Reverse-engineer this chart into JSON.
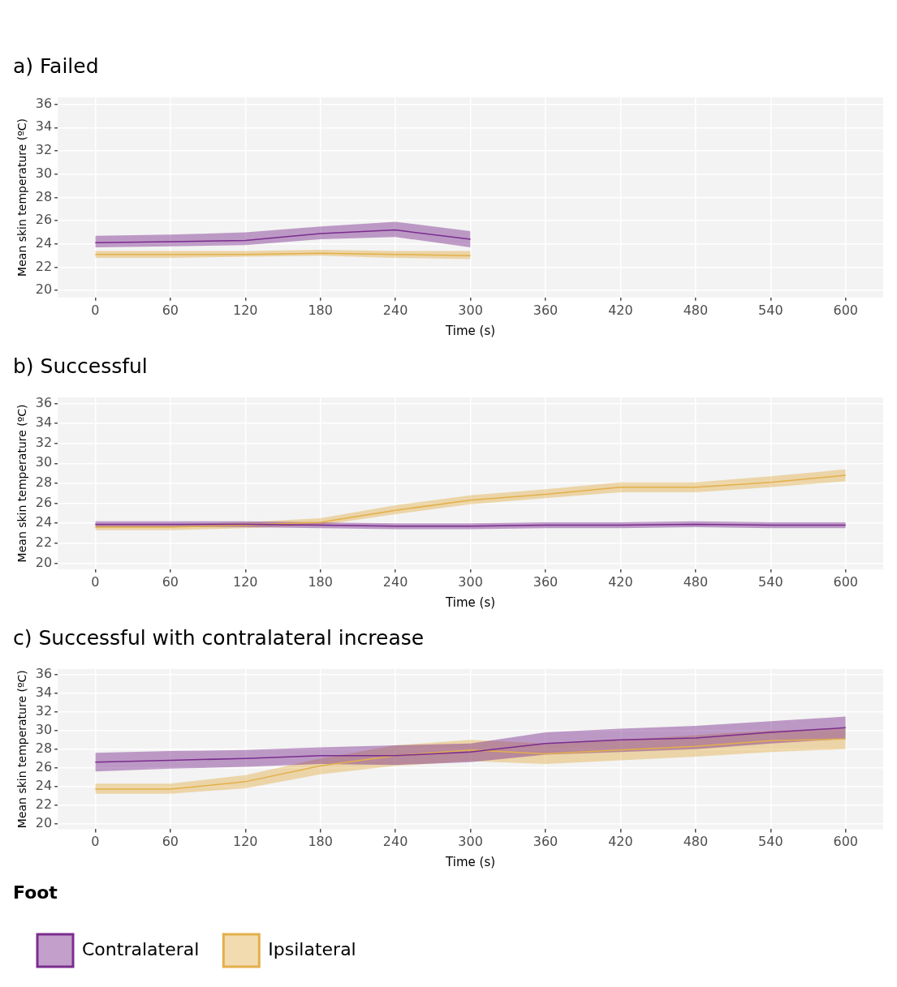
{
  "chart_data": [
    {
      "type": "line",
      "title": "a) Failed",
      "xlabel": "Time (s)",
      "ylabel": "Mean skin temperature (ºC)",
      "x": [
        0,
        60,
        120,
        180,
        240,
        300
      ],
      "xlim": [
        -30,
        630
      ],
      "xticks": [
        0,
        60,
        120,
        180,
        240,
        300,
        360,
        420,
        480,
        540,
        600
      ],
      "ylim": [
        19.4,
        36.6
      ],
      "yticks": [
        20,
        22,
        24,
        26,
        28,
        30,
        32,
        34,
        36
      ],
      "grid": true,
      "series": [
        {
          "color": "#7b2d8e",
          "values": [
            24.1,
            24.2,
            24.3,
            24.9,
            25.2,
            24.4
          ],
          "lower": [
            23.7,
            23.8,
            23.9,
            24.4,
            24.6,
            23.7
          ],
          "upper": [
            24.7,
            24.8,
            25.0,
            25.5,
            25.9,
            25.1
          ]
        },
        {
          "color": "#e3b04b",
          "values": [
            23.1,
            23.1,
            23.1,
            23.2,
            23.1,
            23.0
          ],
          "lower": [
            22.8,
            22.8,
            22.9,
            23.0,
            22.8,
            22.7
          ],
          "upper": [
            23.4,
            23.4,
            23.4,
            23.5,
            23.4,
            23.4
          ]
        }
      ]
    },
    {
      "type": "line",
      "title": "b) Successful",
      "xlabel": "Time (s)",
      "ylabel": "Mean skin temperature (ºC)",
      "x": [
        0,
        60,
        120,
        180,
        240,
        300,
        360,
        420,
        480,
        540,
        600
      ],
      "xlim": [
        -30,
        630
      ],
      "xticks": [
        0,
        60,
        120,
        180,
        240,
        300,
        360,
        420,
        480,
        540,
        600
      ],
      "ylim": [
        19.4,
        36.6
      ],
      "yticks": [
        20,
        22,
        24,
        26,
        28,
        30,
        32,
        34,
        36
      ],
      "grid": true,
      "series": [
        {
          "color": "#7b2d8e",
          "values": [
            23.9,
            23.9,
            23.9,
            23.8,
            23.7,
            23.7,
            23.8,
            23.8,
            23.9,
            23.8,
            23.8
          ],
          "lower": [
            23.6,
            23.6,
            23.6,
            23.5,
            23.4,
            23.4,
            23.5,
            23.5,
            23.6,
            23.5,
            23.5
          ],
          "upper": [
            24.2,
            24.2,
            24.2,
            24.1,
            24.0,
            24.0,
            24.1,
            24.1,
            24.2,
            24.1,
            24.1
          ]
        },
        {
          "color": "#e3b04b",
          "values": [
            23.6,
            23.6,
            23.8,
            24.1,
            25.3,
            26.3,
            26.9,
            27.6,
            27.6,
            28.1,
            28.8
          ],
          "lower": [
            23.3,
            23.3,
            23.5,
            23.8,
            24.9,
            25.9,
            26.5,
            27.1,
            27.1,
            27.6,
            28.2
          ],
          "upper": [
            23.9,
            23.9,
            24.1,
            24.5,
            25.8,
            26.8,
            27.4,
            28.1,
            28.1,
            28.7,
            29.4
          ]
        }
      ]
    },
    {
      "type": "line",
      "title": "c) Successful with contralateral increase",
      "xlabel": "Time (s)",
      "ylabel": "Mean skin temperature (ºC)",
      "x": [
        0,
        60,
        120,
        180,
        240,
        300,
        360,
        420,
        480,
        540,
        600
      ],
      "xlim": [
        -30,
        630
      ],
      "xticks": [
        0,
        60,
        120,
        180,
        240,
        300,
        360,
        420,
        480,
        540,
        600
      ],
      "ylim": [
        19.4,
        36.6
      ],
      "yticks": [
        20,
        22,
        24,
        26,
        28,
        30,
        32,
        34,
        36
      ],
      "grid": true,
      "legend": "bottom",
      "legend_title": "Foot",
      "series": [
        {
          "name": "Contralateral",
          "color": "#7b2d8e",
          "values": [
            26.6,
            26.8,
            27.0,
            27.3,
            27.3,
            27.7,
            28.6,
            29.0,
            29.2,
            29.8,
            30.3
          ],
          "lower": [
            25.6,
            25.9,
            26.1,
            26.4,
            26.3,
            26.6,
            27.4,
            27.7,
            28.0,
            28.6,
            29.1
          ],
          "upper": [
            27.6,
            27.8,
            27.9,
            28.2,
            28.4,
            28.6,
            29.8,
            30.2,
            30.5,
            31.0,
            31.5
          ]
        },
        {
          "name": "Ipsilateral",
          "color": "#e3b04b",
          "values": [
            23.7,
            23.7,
            24.5,
            26.2,
            27.3,
            27.9,
            27.5,
            27.9,
            28.3,
            28.9,
            29.1
          ],
          "lower": [
            23.2,
            23.2,
            23.8,
            25.3,
            26.2,
            26.7,
            26.4,
            26.8,
            27.2,
            27.7,
            28.0
          ],
          "upper": [
            24.3,
            24.3,
            25.2,
            27.0,
            28.4,
            29.0,
            28.6,
            29.0,
            29.5,
            30.0,
            30.2
          ]
        }
      ]
    }
  ]
}
